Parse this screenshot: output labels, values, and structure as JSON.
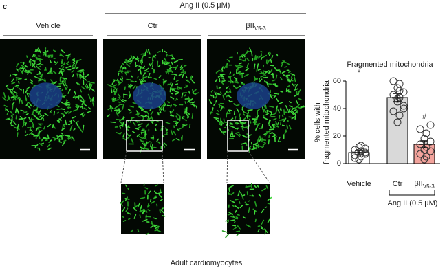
{
  "figure": {
    "panel_letter": "c",
    "vehicle_label": "Vehicle",
    "treatment_label": "Ang II (0.5 μM)",
    "ctr_label": "Ctr",
    "inhibitor_label": "βII",
    "inhibitor_sub": "V5-3",
    "caption": "Adult cardiomyocytes"
  },
  "chart_data": {
    "type": "bar",
    "title": "Fragmented mitochondria",
    "ylabel": [
      "% cells with",
      "fragmented mitochondria"
    ],
    "categories": [
      "Vehicle",
      "Ctr",
      "βII"
    ],
    "category_subscripts": [
      null,
      null,
      "V5-3"
    ],
    "values": [
      8,
      48,
      14
    ],
    "errors": [
      1.5,
      3,
      2.5
    ],
    "colors": [
      "#ffffff",
      "#d9d9d9",
      "#f2a39c"
    ],
    "points": [
      [
        3,
        5,
        6,
        7,
        8,
        9,
        10,
        11,
        12,
        13,
        4,
        8
      ],
      [
        30,
        35,
        38,
        42,
        45,
        48,
        50,
        52,
        55,
        58,
        60,
        40,
        47,
        53
      ],
      [
        3,
        5,
        7,
        9,
        10,
        12,
        14,
        16,
        18,
        22,
        25,
        28
      ]
    ],
    "annotations": [
      "*",
      null,
      "#"
    ],
    "annotation_index": [
      1,
      null,
      2
    ],
    "bracket_label": "Ang II (0.5 μM)",
    "ylim": [
      0,
      60
    ],
    "yticks": [
      0,
      20,
      40,
      60
    ]
  }
}
